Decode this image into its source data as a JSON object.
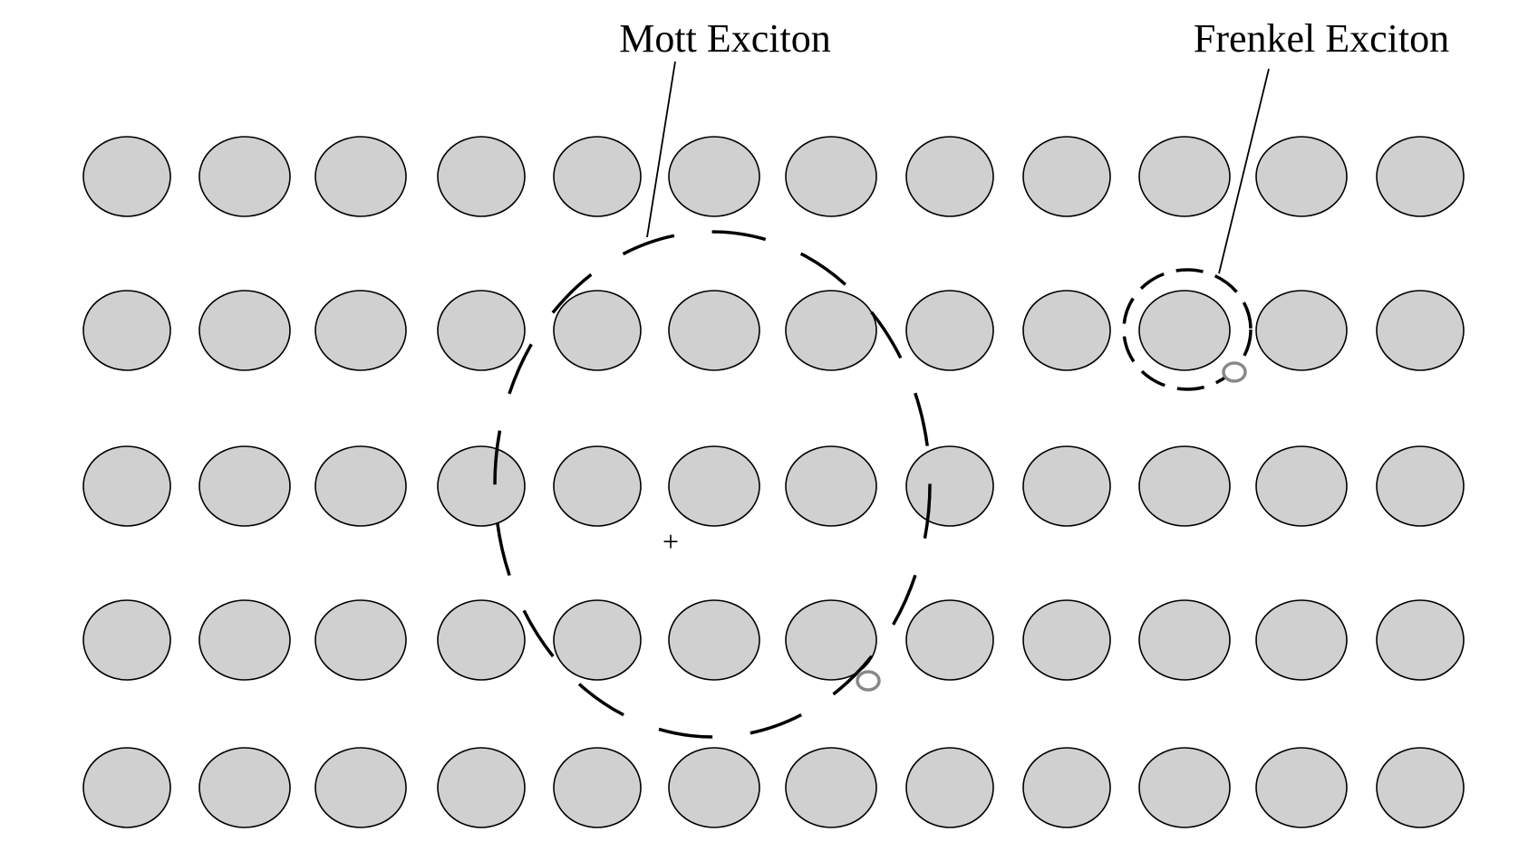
{
  "labels": {
    "mott": "Mott Exciton",
    "frenkel": "Frenkel Exciton",
    "hole": "+"
  },
  "lattice": {
    "rows": 5,
    "cols": 12,
    "fill_color": "#d0d0d0",
    "stroke_color": "#000000"
  },
  "colors": {
    "electron": "#888888",
    "orbit": "#000000",
    "leader": "#000000"
  }
}
